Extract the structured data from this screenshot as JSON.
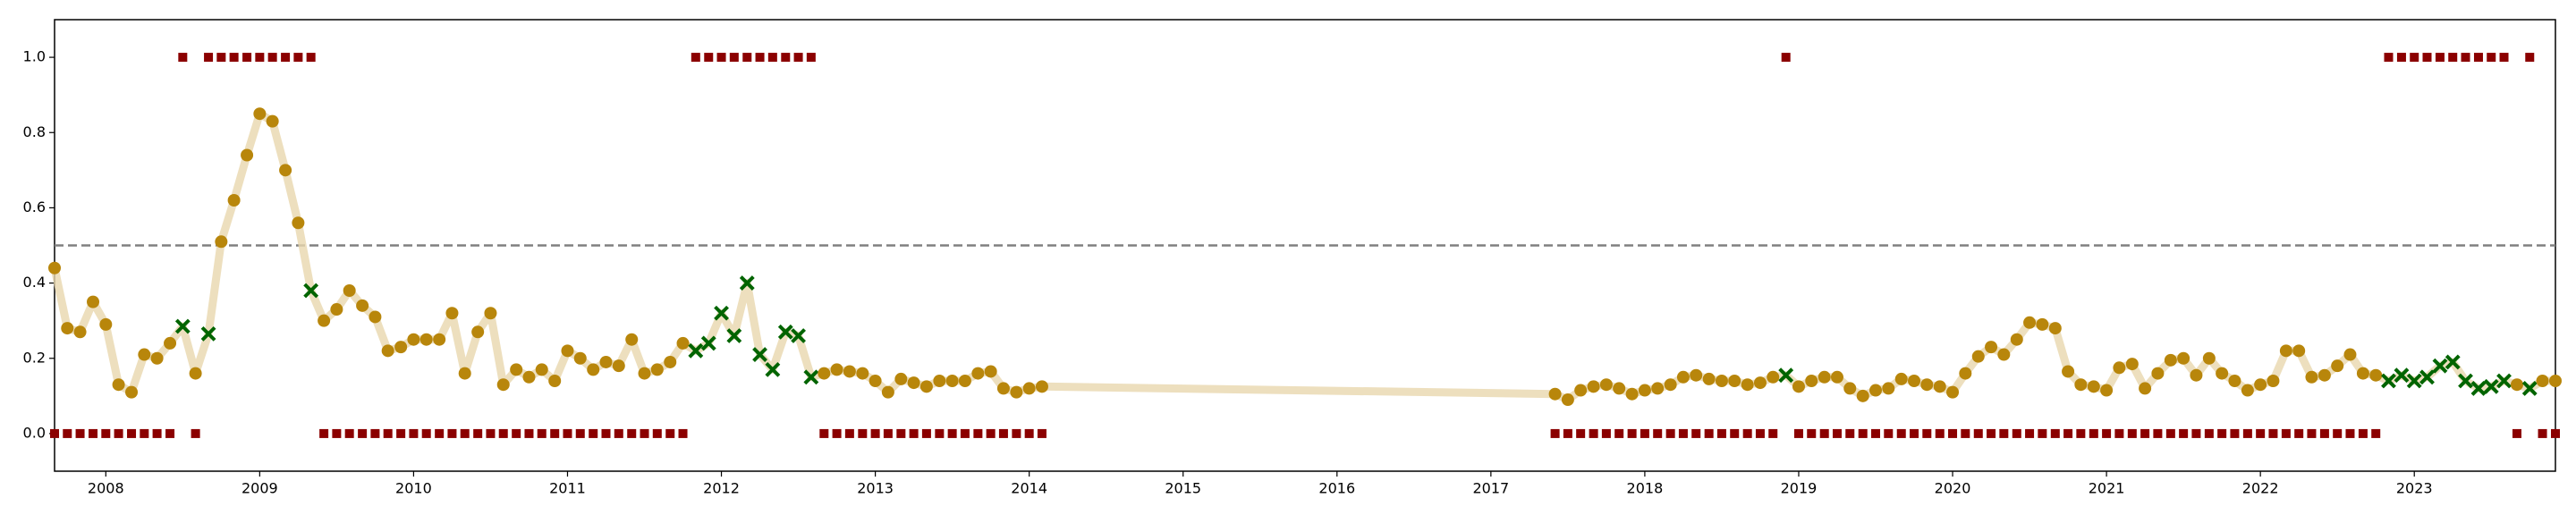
{
  "chart_data": {
    "type": "line",
    "x": [
      2007.667,
      2007.75,
      2007.833,
      2007.917,
      2008,
      2008.083,
      2008.167,
      2008.25,
      2008.333,
      2008.417,
      2008.5,
      2008.583,
      2008.667,
      2008.75,
      2008.833,
      2008.917,
      2009,
      2009.083,
      2009.167,
      2009.25,
      2009.333,
      2009.417,
      2009.5,
      2009.583,
      2009.667,
      2009.75,
      2009.833,
      2009.917,
      2010,
      2010.083,
      2010.167,
      2010.25,
      2010.333,
      2010.417,
      2010.5,
      2010.583,
      2010.667,
      2010.75,
      2010.833,
      2010.917,
      2011,
      2011.083,
      2011.167,
      2011.25,
      2011.333,
      2011.417,
      2011.5,
      2011.583,
      2011.667,
      2011.75,
      2011.833,
      2011.917,
      2012,
      2012.083,
      2012.167,
      2012.25,
      2012.333,
      2012.417,
      2012.5,
      2012.583,
      2012.667,
      2012.75,
      2012.833,
      2012.917,
      2013,
      2013.083,
      2013.167,
      2013.25,
      2013.333,
      2013.417,
      2013.5,
      2013.583,
      2013.667,
      2013.75,
      2013.833,
      2013.917,
      2014,
      2014.083,
      2017.417,
      2017.5,
      2017.583,
      2017.667,
      2017.75,
      2017.833,
      2017.917,
      2018,
      2018.083,
      2018.167,
      2018.25,
      2018.333,
      2018.417,
      2018.5,
      2018.583,
      2018.667,
      2018.75,
      2018.833,
      2018.917,
      2019,
      2019.083,
      2019.167,
      2019.25,
      2019.333,
      2019.417,
      2019.5,
      2019.583,
      2019.667,
      2019.75,
      2019.833,
      2019.917,
      2020,
      2020.083,
      2020.167,
      2020.25,
      2020.333,
      2020.417,
      2020.5,
      2020.583,
      2020.667,
      2020.75,
      2020.833,
      2020.917,
      2021,
      2021.083,
      2021.167,
      2021.25,
      2021.333,
      2021.417,
      2021.5,
      2021.583,
      2021.667,
      2021.75,
      2021.833,
      2021.917,
      2022,
      2022.083,
      2022.167,
      2022.25,
      2022.333,
      2022.417,
      2022.5,
      2022.583,
      2022.667,
      2022.75,
      2022.833,
      2022.917,
      2023,
      2023.083,
      2023.167,
      2023.25,
      2023.333,
      2023.417,
      2023.5,
      2023.583,
      2023.667,
      2023.75,
      2023.833,
      2023.917
    ],
    "series": [
      {
        "color": "#b8860b",
        "line_color": "#e9d7ae",
        "values": [
          0.44,
          0.28,
          0.27,
          0.35,
          0.29,
          0.13,
          0.11,
          0.21,
          0.2,
          0.24,
          0.285,
          0.16,
          0.265,
          0.51,
          0.62,
          0.74,
          0.85,
          0.83,
          0.7,
          0.56,
          0.38,
          0.3,
          0.33,
          0.38,
          0.34,
          0.31,
          0.22,
          0.23,
          0.25,
          0.25,
          0.25,
          0.32,
          0.16,
          0.27,
          0.32,
          0.13,
          0.17,
          0.15,
          0.17,
          0.14,
          0.22,
          0.2,
          0.17,
          0.19,
          0.18,
          0.25,
          0.16,
          0.17,
          0.19,
          0.24,
          0.22,
          0.24,
          0.32,
          0.26,
          0.4,
          0.21,
          0.17,
          0.27,
          0.26,
          0.15,
          0.16,
          0.17,
          0.165,
          0.16,
          0.14,
          0.11,
          0.145,
          0.135,
          0.125,
          0.14,
          0.14,
          0.14,
          0.16,
          0.165,
          0.12,
          0.11,
          0.12,
          0.125,
          0.105,
          0.09,
          0.115,
          0.125,
          0.13,
          0.12,
          0.105,
          0.115,
          0.12,
          0.13,
          0.15,
          0.155,
          0.145,
          0.14,
          0.14,
          0.13,
          0.135,
          0.15,
          0.155,
          0.125,
          0.14,
          0.15,
          0.15,
          0.12,
          0.1,
          0.115,
          0.12,
          0.145,
          0.14,
          0.13,
          0.125,
          0.11,
          0.16,
          0.205,
          0.23,
          0.21,
          0.25,
          0.295,
          0.29,
          0.28,
          0.165,
          0.13,
          0.125,
          0.115,
          0.175,
          0.185,
          0.12,
          0.16,
          0.195,
          0.2,
          0.155,
          0.2,
          0.16,
          0.14,
          0.115,
          0.13,
          0.14,
          0.22,
          0.22,
          0.15,
          0.155,
          0.18,
          0.21,
          0.16,
          0.155,
          0.14,
          0.155,
          0.14,
          0.15,
          0.18,
          0.19,
          0.14,
          0.12,
          0.125,
          0.14,
          0.13,
          0.12,
          0.14,
          0.14
        ]
      },
      {
        "color": "#8b0000",
        "values": [
          0,
          0,
          0,
          0,
          0,
          0,
          0,
          0,
          0,
          0,
          1,
          0,
          1,
          1,
          1,
          1,
          1,
          1,
          1,
          1,
          1,
          0,
          0,
          0,
          0,
          0,
          0,
          0,
          0,
          0,
          0,
          0,
          0,
          0,
          0,
          0,
          0,
          0,
          0,
          0,
          0,
          0,
          0,
          0,
          0,
          0,
          0,
          0,
          0,
          0,
          1,
          1,
          1,
          1,
          1,
          1,
          1,
          1,
          1,
          1,
          0,
          0,
          0,
          0,
          0,
          0,
          0,
          0,
          0,
          0,
          0,
          0,
          0,
          0,
          0,
          0,
          0,
          0,
          0,
          0,
          0,
          0,
          0,
          0,
          0,
          0,
          0,
          0,
          0,
          0,
          0,
          0,
          0,
          0,
          0,
          0,
          1,
          0,
          0,
          0,
          0,
          0,
          0,
          0,
          0,
          0,
          0,
          0,
          0,
          0,
          0,
          0,
          0,
          0,
          0,
          0,
          0,
          0,
          0,
          0,
          0,
          0,
          0,
          0,
          0,
          0,
          0,
          0,
          0,
          0,
          0,
          0,
          0,
          0,
          0,
          0,
          0,
          0,
          0,
          0,
          0,
          0,
          0,
          1,
          1,
          1,
          1,
          1,
          1,
          1,
          1,
          1,
          1,
          0,
          1,
          0,
          0
        ]
      }
    ],
    "highlight_color": "#006400",
    "threshold": 0.5,
    "threshold_color": "#808080",
    "xlim": [
      2007.667,
      2023.917
    ],
    "ylim": [
      -0.1,
      1.1
    ],
    "xticks": [
      2008,
      2009,
      2010,
      2011,
      2012,
      2013,
      2014,
      2015,
      2016,
      2017,
      2018,
      2019,
      2020,
      2021,
      2022,
      2023
    ],
    "yticks": [
      {
        "value": 0,
        "label": "0.0"
      },
      0.2,
      0.4,
      0.6,
      0.8,
      {
        "value": 1,
        "label": "1.0"
      }
    ]
  }
}
